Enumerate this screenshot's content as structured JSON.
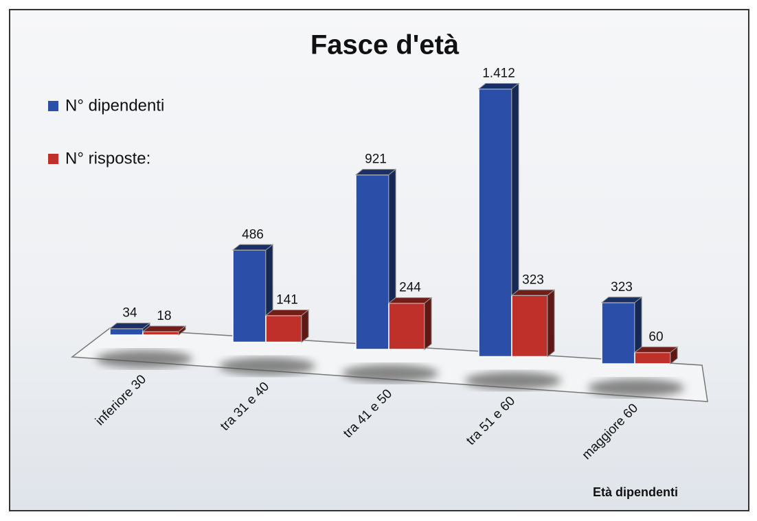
{
  "chart_data": {
    "type": "bar3d",
    "title": "Fasce d'età",
    "categories": [
      "inferiore 30",
      "tra 31 e 40",
      "tra 41 e 50",
      "tra 51 e 60",
      "maggiore 60"
    ],
    "xlabel": "Età dipendenti",
    "legend": "top-left",
    "series": [
      {
        "name": "N° dipendenti",
        "color": "#2b4fa8",
        "values": [
          34,
          486,
          921,
          1412,
          323
        ],
        "value_labels": [
          "34",
          "486",
          "921",
          "1.412",
          "323"
        ]
      },
      {
        "name": "N° risposte:",
        "color": "#c0302a",
        "values": [
          18,
          141,
          244,
          323,
          60
        ]
      }
    ]
  }
}
